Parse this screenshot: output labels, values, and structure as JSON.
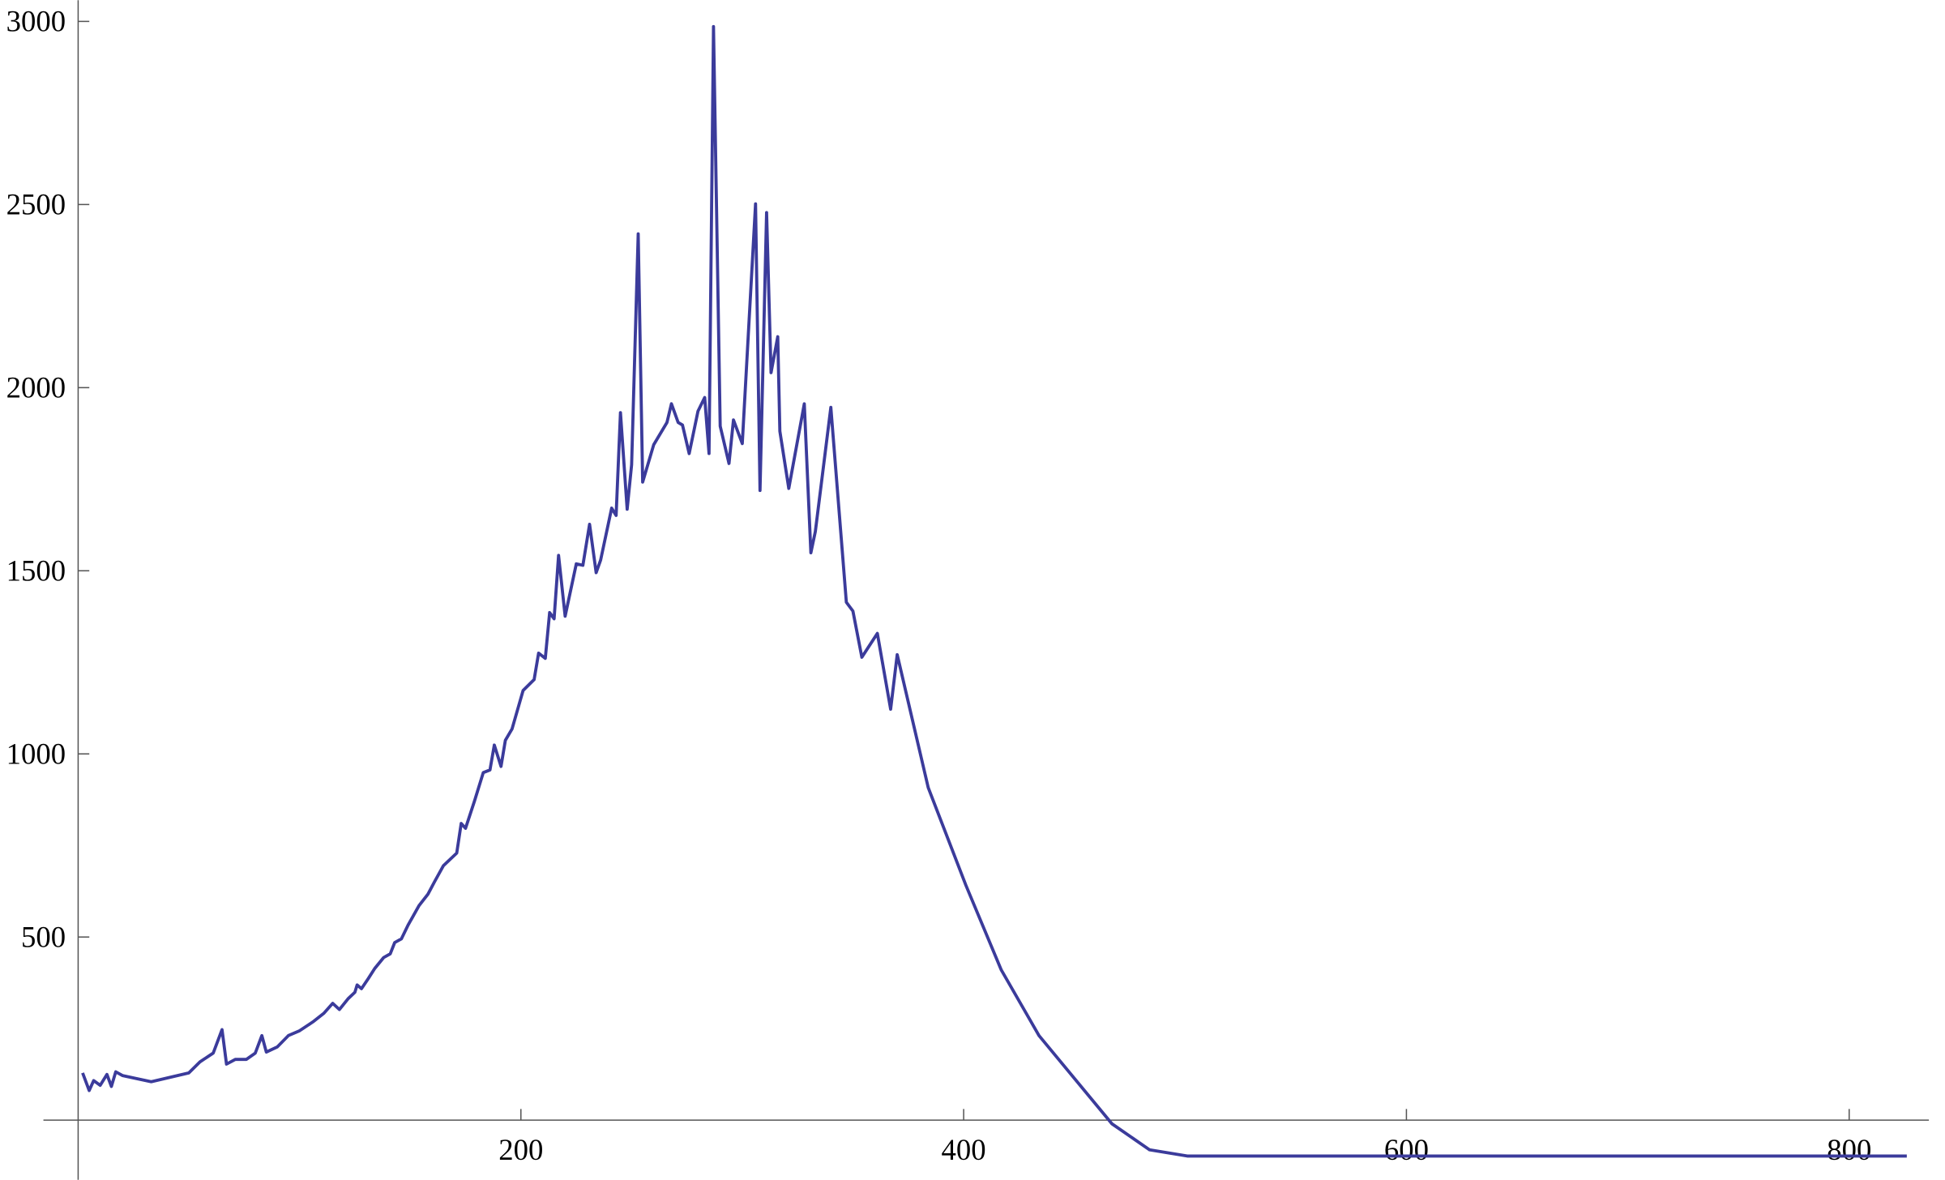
{
  "chart_data": {
    "type": "line",
    "x": [
      2,
      5,
      7,
      10,
      13,
      15,
      17,
      20,
      33,
      50,
      55,
      61,
      65,
      67,
      71,
      76,
      80,
      83,
      85,
      90,
      95,
      100,
      106,
      111,
      115,
      118,
      122,
      125,
      126,
      128,
      131,
      134,
      138,
      141,
      143,
      146,
      149,
      154,
      158,
      161,
      165,
      171,
      173,
      175,
      179,
      183,
      186,
      188,
      191,
      193,
      196,
      201,
      206,
      208,
      211,
      213,
      215,
      217,
      220,
      225,
      228,
      231,
      234,
      236,
      241,
      243,
      245,
      248,
      250,
      253,
      255,
      260,
      266,
      268,
      271,
      273,
      276,
      280,
      283,
      285,
      287,
      290,
      294,
      296,
      300,
      306,
      308,
      311,
      313,
      316,
      317,
      321,
      328,
      331,
      333,
      340,
      347,
      350,
      354,
      361,
      367,
      370,
      384,
      401,
      417,
      434,
      467,
      484,
      501,
      826
    ],
    "series": [
      {
        "color": "#3b3b9b",
        "values": [
          129,
          81,
          108,
          95,
          125,
          92,
          132,
          122,
          105,
          129,
          159,
          183,
          247,
          153,
          166,
          166,
          183,
          231,
          186,
          200,
          231,
          244,
          268,
          292,
          319,
          302,
          332,
          349,
          369,
          359,
          386,
          414,
          444,
          454,
          485,
          495,
          532,
          586,
          617,
          651,
          695,
          729,
          810,
          797,
          871,
          949,
          956,
          1024,
          966,
          1037,
          1068,
          1173,
          1203,
          1275,
          1261,
          1386,
          1369,
          1542,
          1376,
          1519,
          1515,
          1627,
          1495,
          1529,
          1671,
          1651,
          1932,
          1668,
          1790,
          2420,
          1742,
          1844,
          1905,
          1956,
          1905,
          1898,
          1820,
          1936,
          1973,
          1820,
          2986,
          1895,
          1793,
          1912,
          1847,
          2502,
          1719,
          2478,
          2041,
          2139,
          1881,
          1725,
          1956,
          1549,
          1607,
          1946,
          1414,
          1390,
          1264,
          1329,
          1122,
          1271,
          908,
          641,
          410,
          231,
          -10,
          -81,
          -98,
          -98
        ]
      }
    ],
    "xlim": [
      0,
      836
    ],
    "ylim": [
      -163,
      3058
    ],
    "xticks": [
      200,
      400,
      600,
      800
    ],
    "yticks": [
      500,
      1000,
      1500,
      2000,
      2500,
      3000
    ]
  }
}
